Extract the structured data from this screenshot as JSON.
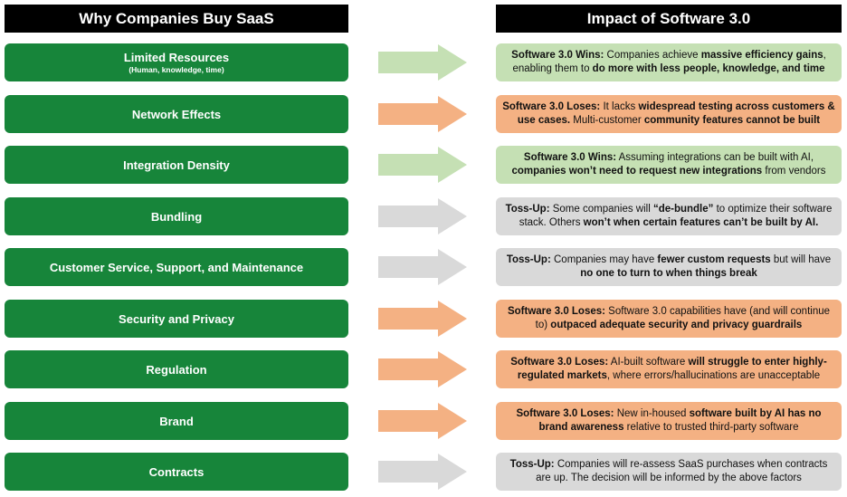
{
  "headers": {
    "left": "Why Companies Buy SaaS",
    "right": "Impact of Software 3.0"
  },
  "colors": {
    "green_box": "#17853a",
    "wins": "#c5e0b4",
    "loses": "#f4b183",
    "tossup": "#d9d9d9",
    "arrow_wins": "#c5e0b4",
    "arrow_loses": "#f4b183",
    "arrow_tossup": "#d9d9d9"
  },
  "rows": [
    {
      "reason": "Limited Resources",
      "sub": "(Human, knowledge, time)",
      "type": "wins",
      "impact": [
        {
          "t": "Software 3.0 Wins:",
          "b": true
        },
        {
          "t": " Companies achieve ",
          "b": false
        },
        {
          "t": "massive efficiency gains",
          "b": true
        },
        {
          "t": ", enabling them to ",
          "b": false
        },
        {
          "t": "do more with less people, knowledge, and time",
          "b": true
        }
      ]
    },
    {
      "reason": "Network Effects",
      "sub": "",
      "type": "loses",
      "impact": [
        {
          "t": "Software 3.0 Loses:",
          "b": true
        },
        {
          "t": " It lacks ",
          "b": false
        },
        {
          "t": "widespread testing across customers & use cases.",
          "b": true
        },
        {
          "t": " Multi-customer ",
          "b": false
        },
        {
          "t": "community features cannot be built",
          "b": true
        }
      ]
    },
    {
      "reason": "Integration Density",
      "sub": "",
      "type": "wins",
      "impact": [
        {
          "t": "Software 3.0 Wins:",
          "b": true
        },
        {
          "t": " Assuming integrations can be built with AI, ",
          "b": false
        },
        {
          "t": "companies won’t need to request new integrations",
          "b": true
        },
        {
          "t": " from vendors",
          "b": false
        }
      ]
    },
    {
      "reason": "Bundling",
      "sub": "",
      "type": "tossup",
      "impact": [
        {
          "t": "Toss-Up:",
          "b": true
        },
        {
          "t": " Some companies will ",
          "b": false
        },
        {
          "t": "“de-bundle”",
          "b": true
        },
        {
          "t": " to optimize their software stack. Others ",
          "b": false
        },
        {
          "t": "won’t when certain features can’t be built by AI.",
          "b": true
        }
      ]
    },
    {
      "reason": "Customer Service, Support, and Maintenance",
      "sub": "",
      "type": "tossup",
      "impact": [
        {
          "t": "Toss-Up:",
          "b": true
        },
        {
          "t": " Companies may have ",
          "b": false
        },
        {
          "t": "fewer custom requests",
          "b": true
        },
        {
          "t": " but will have ",
          "b": false
        },
        {
          "t": "no one to turn to when things break",
          "b": true
        }
      ]
    },
    {
      "reason": "Security and Privacy",
      "sub": "",
      "type": "loses",
      "impact": [
        {
          "t": "Software 3.0 Loses:",
          "b": true
        },
        {
          "t": " Software 3.0 capabilities have (and will continue to) ",
          "b": false
        },
        {
          "t": "outpaced adequate security and privacy guardrails",
          "b": true
        }
      ]
    },
    {
      "reason": "Regulation",
      "sub": "",
      "type": "loses",
      "impact": [
        {
          "t": "Software 3.0 Loses:",
          "b": true
        },
        {
          "t": " AI-built software ",
          "b": false
        },
        {
          "t": "will struggle to enter highly-regulated markets",
          "b": true
        },
        {
          "t": ", where errors/hallucinations are unacceptable",
          "b": false
        }
      ]
    },
    {
      "reason": "Brand",
      "sub": "",
      "type": "loses",
      "impact": [
        {
          "t": "Software 3.0 Loses:",
          "b": true
        },
        {
          "t": " New in-housed ",
          "b": false
        },
        {
          "t": "software built by AI has no brand awareness",
          "b": true
        },
        {
          "t": " relative to trusted third-party software",
          "b": false
        }
      ]
    },
    {
      "reason": "Contracts",
      "sub": "",
      "type": "tossup",
      "impact": [
        {
          "t": "Toss-Up:",
          "b": true
        },
        {
          "t": " Companies will re-assess SaaS purchases when contracts are up. The decision will be informed by the above factors",
          "b": false
        }
      ]
    }
  ]
}
